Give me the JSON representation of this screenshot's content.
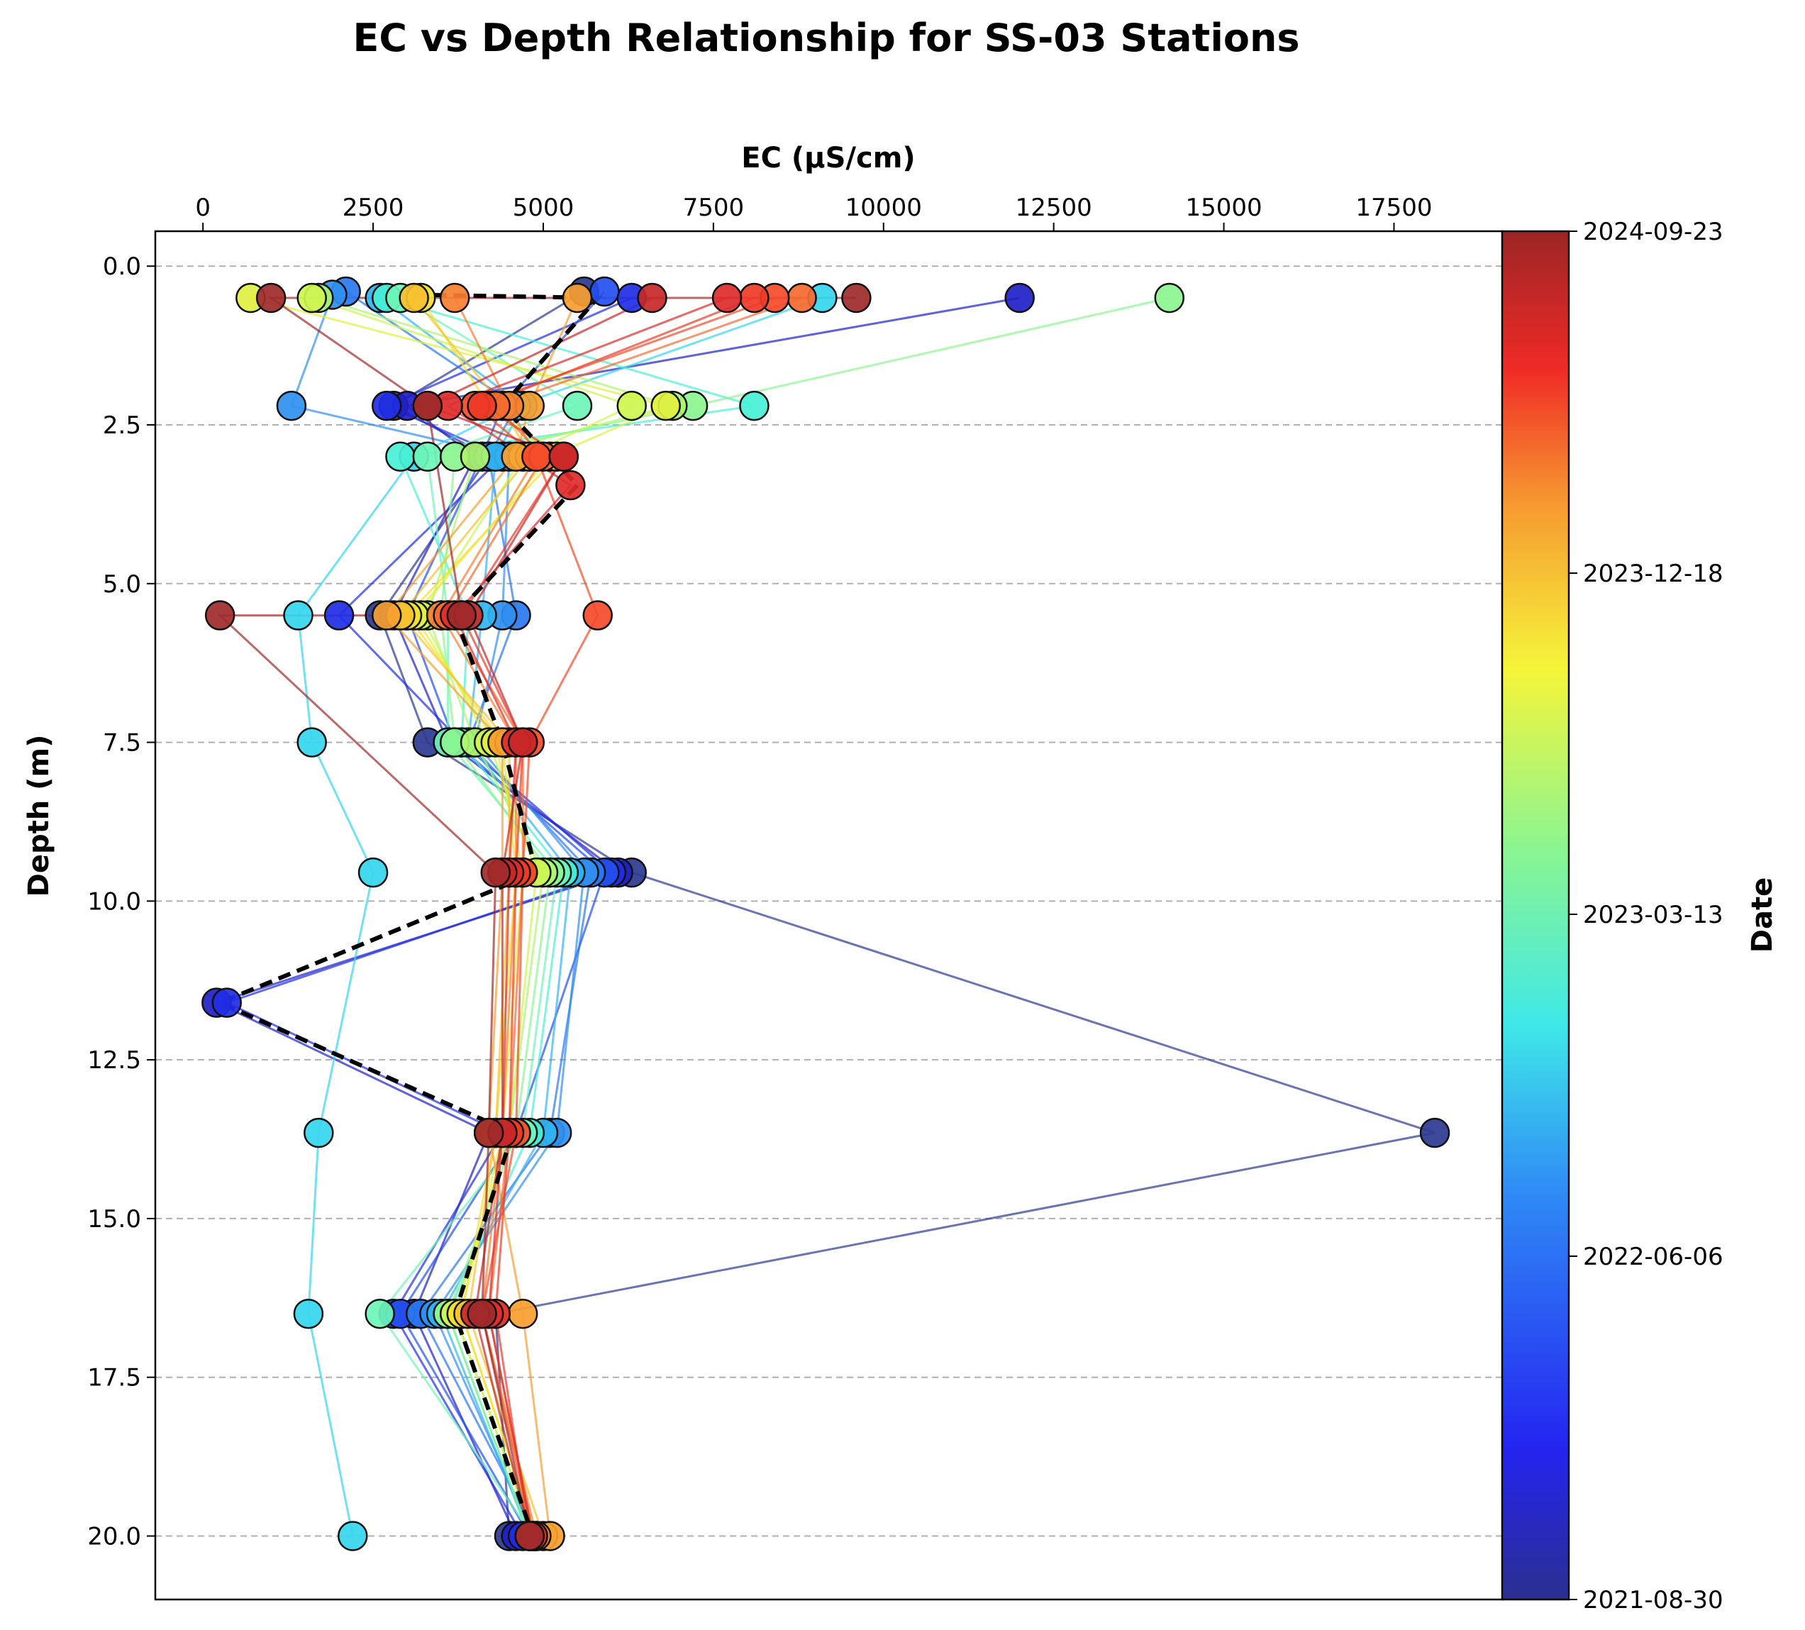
{
  "chart_data": {
    "type": "scatter",
    "title": "EC vs Depth Relationship for SS-03 Stations",
    "xlabel": "EC (µS/cm)",
    "ylabel": "Depth (m)",
    "colorbar_label": "Date",
    "xlim": [
      -700,
      19100
    ],
    "ylim": [
      21,
      -0.55
    ],
    "x_axis_position": "top",
    "y_inverted": true,
    "grid": "horizontal dashed",
    "x_ticks": [
      0,
      2500,
      5000,
      7500,
      10000,
      12500,
      15000,
      17500
    ],
    "y_ticks": [
      0.0,
      2.5,
      5.0,
      7.5,
      10.0,
      12.5,
      15.0,
      17.5,
      20.0
    ],
    "x_tick_labels": [
      "0",
      "2500",
      "5000",
      "7500",
      "10000",
      "12500",
      "15000",
      "17500"
    ],
    "y_tick_labels": [
      "0.0",
      "2.5",
      "5.0",
      "7.5",
      "10.0",
      "12.5",
      "15.0",
      "17.5",
      "20.0"
    ],
    "colorbar_ticks": [
      "2024-09-23",
      "2023-12-18",
      "2023-03-13",
      "2022-06-06",
      "2021-08-30"
    ],
    "colorbar_range": [
      "2021-08-30",
      "2024-09-23"
    ],
    "colormap": "jet",
    "depths": [
      0.5,
      2.2,
      3.0,
      3.45,
      5.5,
      7.5,
      9.55,
      11.6,
      13.65,
      16.5,
      20.0
    ],
    "median_profile": {
      "style": "black dashed",
      "points": [
        [
          3100,
          0.45
        ],
        [
          5800,
          0.5
        ],
        [
          4400,
          2.2
        ],
        [
          5500,
          3.45
        ],
        [
          3700,
          5.5
        ],
        [
          4400,
          7.5
        ],
        [
          4900,
          9.55
        ],
        [
          250,
          11.6
        ],
        [
          4550,
          13.65
        ],
        [
          3700,
          16.5
        ],
        [
          4850,
          20.0
        ]
      ]
    },
    "series": [
      {
        "date": "2021-08-30",
        "color": "#2b3990",
        "points": [
          [
            5600,
            0.4
          ],
          [
            2800,
            2.2
          ],
          [
            4200,
            3.0
          ],
          [
            2600,
            5.5
          ],
          [
            3300,
            7.5
          ],
          [
            6300,
            9.55
          ],
          [
            18100,
            13.65
          ],
          [
            4300,
            16.5
          ],
          [
            4500,
            20.0
          ]
        ]
      },
      {
        "date": "2021-10-15",
        "color": "#2020c8",
        "points": [
          [
            12000,
            0.5
          ],
          [
            3000,
            2.2
          ],
          [
            4000,
            3.0
          ],
          [
            2800,
            5.5
          ],
          [
            3600,
            7.5
          ],
          [
            6100,
            9.55
          ],
          [
            200,
            11.6
          ],
          [
            4200,
            13.65
          ],
          [
            3100,
            16.5
          ],
          [
            4600,
            20.0
          ]
        ]
      },
      {
        "date": "2021-12-20",
        "color": "#1f2ee6",
        "points": [
          [
            6300,
            0.5
          ],
          [
            2700,
            2.2
          ],
          [
            4400,
            3.0
          ],
          [
            2000,
            5.5
          ],
          [
            3800,
            7.5
          ],
          [
            6000,
            9.55
          ],
          [
            350,
            11.6
          ],
          [
            4400,
            13.65
          ],
          [
            2800,
            16.5
          ],
          [
            4700,
            20.0
          ]
        ]
      },
      {
        "date": "2022-02-14",
        "color": "#2350f0",
        "points": [
          [
            5900,
            0.4
          ],
          [
            4400,
            2.2
          ],
          [
            4100,
            3.0
          ],
          [
            3000,
            5.5
          ],
          [
            3700,
            7.5
          ],
          [
            5900,
            9.55
          ],
          [
            4600,
            13.65
          ],
          [
            2900,
            16.5
          ],
          [
            4800,
            20.0
          ]
        ]
      },
      {
        "date": "2022-04-11",
        "color": "#2a78f2",
        "points": [
          [
            2100,
            0.4
          ],
          [
            4600,
            2.2
          ],
          [
            4200,
            3.0
          ],
          [
            4600,
            5.5
          ],
          [
            3900,
            7.5
          ],
          [
            5700,
            9.55
          ],
          [
            5100,
            13.65
          ],
          [
            3200,
            16.5
          ],
          [
            4900,
            20.0
          ]
        ]
      },
      {
        "date": "2022-06-06",
        "color": "#3090f0",
        "points": [
          [
            1900,
            0.45
          ],
          [
            1300,
            2.2
          ],
          [
            4500,
            3.0
          ],
          [
            4400,
            5.5
          ],
          [
            4000,
            7.5
          ],
          [
            5600,
            9.55
          ],
          [
            5200,
            13.65
          ],
          [
            3400,
            16.5
          ],
          [
            4850,
            20.0
          ]
        ]
      },
      {
        "date": "2022-08-15",
        "color": "#30b4f2",
        "points": [
          [
            2600,
            0.5
          ],
          [
            4700,
            2.2
          ],
          [
            4300,
            3.0
          ],
          [
            4100,
            5.5
          ],
          [
            3900,
            7.5
          ],
          [
            5400,
            9.55
          ],
          [
            5000,
            13.65
          ],
          [
            3500,
            16.5
          ],
          [
            4800,
            20.0
          ]
        ]
      },
      {
        "date": "2022-10-17",
        "color": "#35d6ee",
        "points": [
          [
            9100,
            0.5
          ],
          [
            4600,
            2.2
          ],
          [
            3100,
            3.0
          ],
          [
            1400,
            5.5
          ],
          [
            1600,
            7.5
          ],
          [
            2500,
            9.55
          ],
          [
            1700,
            13.65
          ],
          [
            1550,
            16.5
          ],
          [
            2200,
            20.0
          ]
        ]
      },
      {
        "date": "2022-12-12",
        "color": "#48f0d6",
        "points": [
          [
            2700,
            0.5
          ],
          [
            8100,
            2.2
          ],
          [
            2900,
            3.0
          ],
          [
            3900,
            5.5
          ],
          [
            3800,
            7.5
          ],
          [
            5300,
            9.55
          ],
          [
            4800,
            13.65
          ],
          [
            3600,
            16.5
          ],
          [
            4800,
            20.0
          ]
        ]
      },
      {
        "date": "2023-02-13",
        "color": "#6ef5b8",
        "points": [
          [
            2900,
            0.5
          ],
          [
            5500,
            2.2
          ],
          [
            3300,
            3.0
          ],
          [
            3600,
            5.5
          ],
          [
            3600,
            7.5
          ],
          [
            5200,
            9.55
          ],
          [
            4700,
            13.65
          ],
          [
            2600,
            16.5
          ],
          [
            4850,
            20.0
          ]
        ]
      },
      {
        "date": "2023-03-13",
        "color": "#8cf590",
        "points": [
          [
            14200,
            0.5
          ],
          [
            7200,
            2.2
          ],
          [
            3700,
            3.0
          ],
          [
            3500,
            5.5
          ],
          [
            3700,
            7.5
          ],
          [
            5100,
            9.55
          ],
          [
            4600,
            13.65
          ],
          [
            3600,
            16.5
          ],
          [
            4800,
            20.0
          ]
        ]
      },
      {
        "date": "2023-05-15",
        "color": "#aef56e",
        "points": [
          [
            1700,
            0.5
          ],
          [
            6900,
            2.2
          ],
          [
            4000,
            3.0
          ],
          [
            3300,
            5.5
          ],
          [
            4000,
            7.5
          ],
          [
            5000,
            9.55
          ],
          [
            4500,
            13.65
          ],
          [
            3700,
            16.5
          ],
          [
            4850,
            20.0
          ]
        ]
      },
      {
        "date": "2023-07-10",
        "color": "#cdf550",
        "points": [
          [
            1600,
            0.5
          ],
          [
            6300,
            2.2
          ],
          [
            4700,
            3.0
          ],
          [
            3200,
            5.5
          ],
          [
            4200,
            7.5
          ],
          [
            4900,
            9.55
          ],
          [
            4500,
            13.65
          ],
          [
            3700,
            16.5
          ],
          [
            4850,
            20.0
          ]
        ]
      },
      {
        "date": "2023-08-21",
        "color": "#e0f040",
        "points": [
          [
            700,
            0.5
          ],
          [
            6800,
            2.2
          ],
          [
            5100,
            3.0
          ],
          [
            3100,
            5.5
          ],
          [
            4300,
            7.5
          ],
          [
            4700,
            9.55
          ],
          [
            4400,
            13.65
          ],
          [
            3800,
            16.5
          ],
          [
            4900,
            20.0
          ]
        ]
      },
      {
        "date": "2023-10-02",
        "color": "#f5e02e",
        "points": [
          [
            3200,
            0.5
          ],
          [
            4200,
            2.2
          ],
          [
            5200,
            3.0
          ],
          [
            3000,
            5.5
          ],
          [
            4400,
            7.5
          ],
          [
            4600,
            9.55
          ],
          [
            4300,
            13.65
          ],
          [
            3800,
            16.5
          ],
          [
            4900,
            20.0
          ]
        ]
      },
      {
        "date": "2023-11-13",
        "color": "#f7c030",
        "points": [
          [
            3100,
            0.5
          ],
          [
            4400,
            2.2
          ],
          [
            4800,
            3.0
          ],
          [
            2900,
            5.5
          ],
          [
            4500,
            7.5
          ],
          [
            4500,
            9.55
          ],
          [
            4300,
            13.65
          ],
          [
            3900,
            16.5
          ],
          [
            5000,
            20.0
          ]
        ]
      },
      {
        "date": "2023-12-18",
        "color": "#f7a030",
        "points": [
          [
            5500,
            0.5
          ],
          [
            4800,
            2.2
          ],
          [
            4600,
            3.0
          ],
          [
            2700,
            5.5
          ],
          [
            4400,
            7.5
          ],
          [
            4400,
            9.55
          ],
          [
            4200,
            13.65
          ],
          [
            4700,
            16.5
          ],
          [
            5100,
            20.0
          ]
        ]
      },
      {
        "date": "2024-02-05",
        "color": "#f68030",
        "points": [
          [
            3700,
            0.5
          ],
          [
            4500,
            2.2
          ],
          [
            4900,
            3.0
          ],
          [
            3500,
            5.5
          ],
          [
            4600,
            7.5
          ],
          [
            4600,
            9.55
          ],
          [
            4400,
            13.65
          ],
          [
            4100,
            16.5
          ],
          [
            4900,
            20.0
          ]
        ]
      },
      {
        "date": "2024-03-25",
        "color": "#f56a30",
        "points": [
          [
            8800,
            0.5
          ],
          [
            4300,
            2.2
          ],
          [
            5000,
            3.0
          ],
          [
            3600,
            5.5
          ],
          [
            4700,
            7.5
          ],
          [
            4700,
            9.55
          ],
          [
            4500,
            13.65
          ],
          [
            4200,
            16.5
          ],
          [
            4850,
            20.0
          ]
        ]
      },
      {
        "date": "2024-05-06",
        "color": "#f44a2a",
        "points": [
          [
            8400,
            0.5
          ],
          [
            4000,
            2.2
          ],
          [
            4900,
            3.0
          ],
          [
            5800,
            5.5
          ],
          [
            4800,
            7.5
          ],
          [
            4700,
            9.55
          ],
          [
            4600,
            13.65
          ],
          [
            4100,
            16.5
          ],
          [
            4850,
            20.0
          ]
        ]
      },
      {
        "date": "2024-06-17",
        "color": "#ee3a26",
        "points": [
          [
            8100,
            0.5
          ],
          [
            4100,
            2.2
          ],
          [
            5300,
            3.0
          ],
          [
            3800,
            5.5
          ],
          [
            4700,
            7.5
          ],
          [
            4600,
            9.55
          ],
          [
            4500,
            13.65
          ],
          [
            4300,
            16.5
          ],
          [
            4800,
            20.0
          ]
        ]
      },
      {
        "date": "2024-07-22",
        "color": "#de2b2b",
        "points": [
          [
            7700,
            0.5
          ],
          [
            3600,
            2.2
          ],
          [
            5400,
            3.45
          ],
          [
            3700,
            5.5
          ],
          [
            4600,
            7.5
          ],
          [
            4500,
            9.55
          ],
          [
            4400,
            13.65
          ],
          [
            4200,
            16.5
          ],
          [
            4850,
            20.0
          ]
        ]
      },
      {
        "date": "2024-08-26",
        "color": "#c82828",
        "points": [
          [
            6600,
            0.5
          ],
          [
            3300,
            2.2
          ],
          [
            5300,
            3.0
          ],
          [
            3900,
            5.5
          ],
          [
            4700,
            7.5
          ],
          [
            4400,
            9.55
          ],
          [
            4400,
            13.65
          ],
          [
            4000,
            16.5
          ],
          [
            4800,
            20.0
          ]
        ]
      },
      {
        "date": "2024-09-23",
        "color": "#9e2a2a",
        "points": [
          [
            9600,
            0.5
          ],
          [
            1000,
            0.5
          ],
          [
            3300,
            2.2
          ],
          [
            3800,
            5.5
          ],
          [
            250,
            5.5
          ],
          [
            4300,
            9.55
          ],
          [
            4200,
            13.65
          ],
          [
            4100,
            16.5
          ],
          [
            4800,
            20.0
          ]
        ]
      }
    ]
  }
}
